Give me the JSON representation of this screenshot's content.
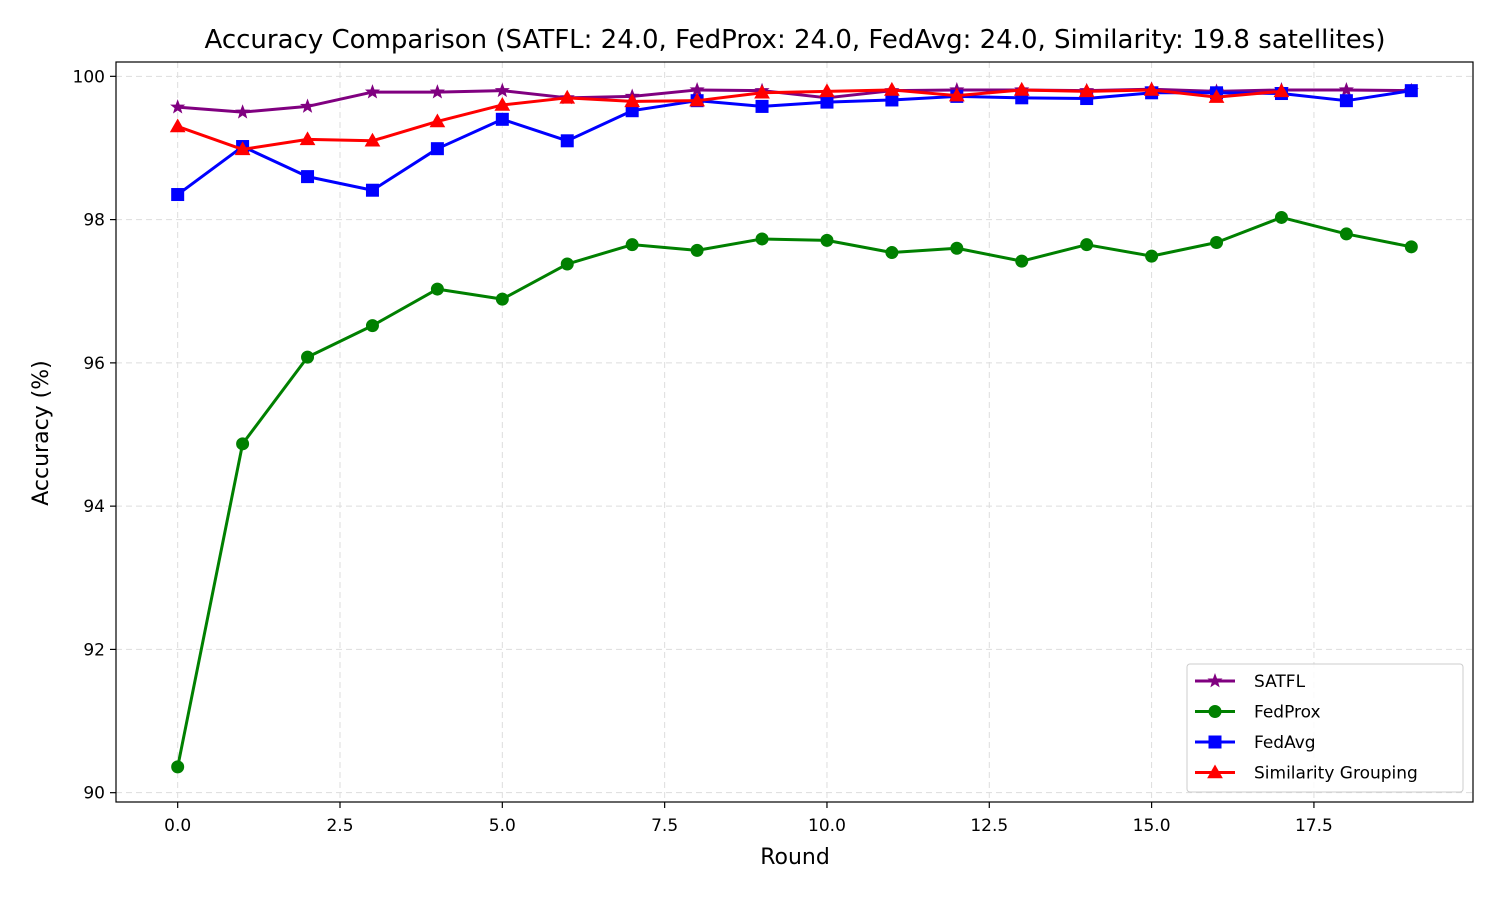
{
  "chart_data": {
    "type": "line",
    "title": "Accuracy Comparison (SATFL: 24.0, FedProx: 24.0, FedAvg: 24.0, Similarity: 19.8 satellites)",
    "xlabel": "Round",
    "ylabel": "Accuracy (%)",
    "xlim": [
      -0.95,
      19.95
    ],
    "ylim": [
      89.87,
      100.2
    ],
    "xticks": [
      0.0,
      2.5,
      5.0,
      7.5,
      10.0,
      12.5,
      15.0,
      17.5
    ],
    "xtick_labels": [
      "0.0",
      "2.5",
      "5.0",
      "7.5",
      "10.0",
      "12.5",
      "15.0",
      "17.5"
    ],
    "yticks": [
      90,
      92,
      94,
      96,
      98,
      100
    ],
    "ytick_labels": [
      "90",
      "92",
      "94",
      "96",
      "98",
      "100"
    ],
    "grid": true,
    "legend_position": "bottom-right",
    "x": [
      0,
      1,
      2,
      3,
      4,
      5,
      6,
      7,
      8,
      9,
      10,
      11,
      12,
      13,
      14,
      15,
      16,
      17,
      18,
      19
    ],
    "series": [
      {
        "name": "SATFL",
        "color": "#800080",
        "marker": "star",
        "values": [
          99.57,
          99.5,
          99.58,
          99.78,
          99.78,
          99.8,
          99.7,
          99.72,
          99.81,
          99.8,
          99.7,
          99.8,
          99.81,
          99.81,
          99.8,
          99.82,
          99.79,
          99.81,
          99.81,
          99.8
        ]
      },
      {
        "name": "FedProx",
        "color": "#008000",
        "marker": "circle",
        "values": [
          90.36,
          94.87,
          96.08,
          96.52,
          97.03,
          96.89,
          97.38,
          97.65,
          97.57,
          97.73,
          97.71,
          97.54,
          97.6,
          97.42,
          97.65,
          97.49,
          97.68,
          98.03,
          97.8,
          97.62
        ]
      },
      {
        "name": "FedAvg",
        "color": "#0000ff",
        "marker": "square",
        "values": [
          98.35,
          99.02,
          98.6,
          98.41,
          98.99,
          99.4,
          99.1,
          99.52,
          99.66,
          99.58,
          99.64,
          99.67,
          99.72,
          99.7,
          99.69,
          99.77,
          99.77,
          99.76,
          99.66,
          99.8
        ]
      },
      {
        "name": "Similarity Grouping",
        "color": "#ff0000",
        "marker": "triangle",
        "values": [
          99.3,
          98.98,
          99.12,
          99.1,
          99.37,
          99.6,
          99.7,
          99.65,
          99.66,
          99.77,
          99.79,
          99.81,
          99.73,
          99.81,
          99.79,
          99.81,
          99.71,
          99.79,
          null,
          null
        ]
      }
    ]
  }
}
